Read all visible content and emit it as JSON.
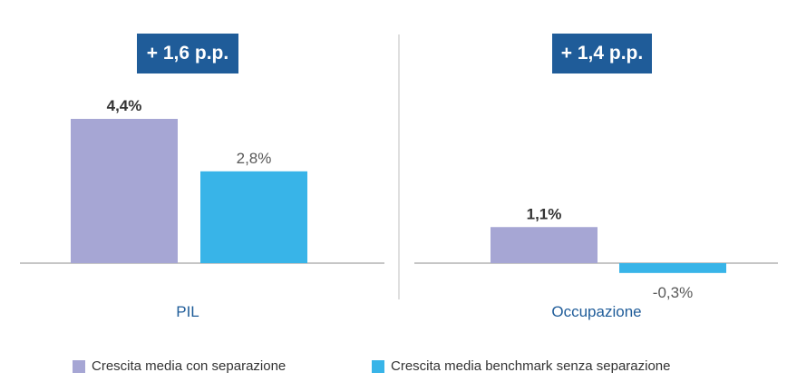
{
  "colors": {
    "series_1": "#a6a6d4",
    "series_2": "#38b4e8",
    "badge_bg": "#1f5c99",
    "category_label": "#1f5c99"
  },
  "chart_data": [
    {
      "type": "bar",
      "badge": "+ 1,6 p.p.",
      "categories": [
        "PIL"
      ],
      "series": [
        {
          "name": "Crescita media con separazione",
          "values": [
            4.4
          ],
          "label": "4,4%"
        },
        {
          "name": "Crescita media benchmark senza separazione",
          "values": [
            2.8
          ],
          "label": "2,8%"
        }
      ]
    },
    {
      "type": "bar",
      "badge": "+ 1,4 p.p.",
      "categories": [
        "Occupazione"
      ],
      "series": [
        {
          "name": "Crescita media con separazione",
          "values": [
            1.1
          ],
          "label": "1,1%"
        },
        {
          "name": "Crescita media benchmark senza separazione",
          "values": [
            -0.3
          ],
          "label": "-0,3%"
        }
      ]
    }
  ],
  "legend": {
    "items": [
      "Crescita media con separazione",
      "Crescita media benchmark senza separazione"
    ]
  }
}
